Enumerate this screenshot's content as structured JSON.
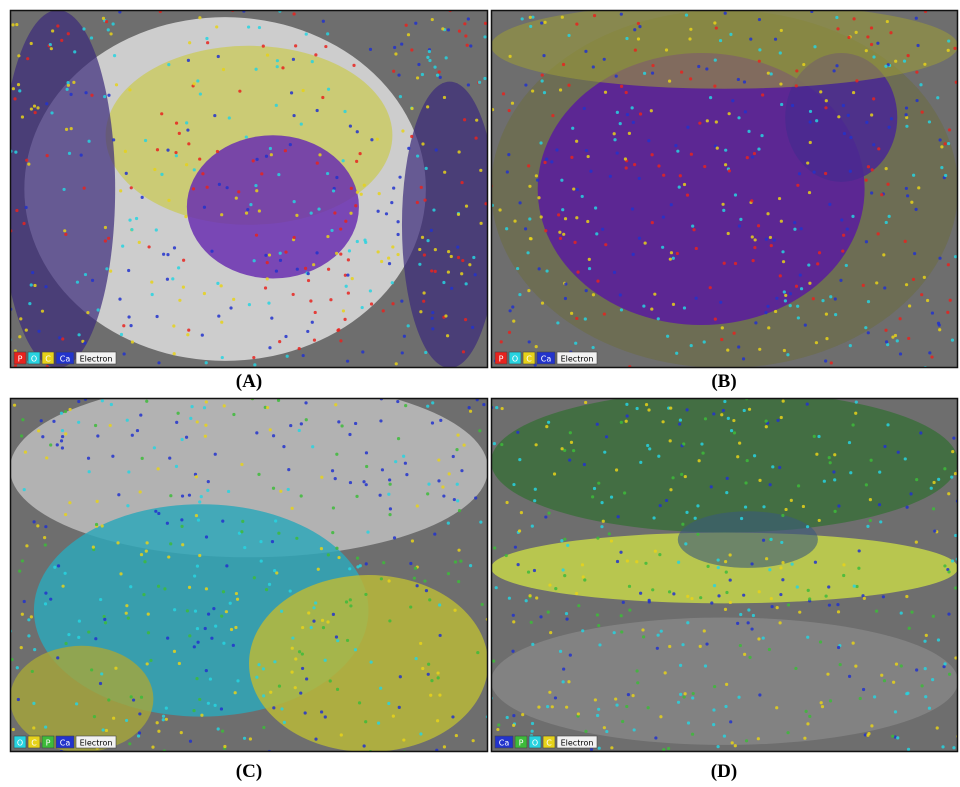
{
  "panels": [
    {
      "caption": "(A)",
      "legend": [
        {
          "label": "P",
          "color": "#e8231e"
        },
        {
          "label": "O",
          "color": "#27d3e0"
        },
        {
          "label": "C",
          "color": "#e6d21a"
        },
        {
          "label": "Ca",
          "color": "#2233cc"
        },
        {
          "label": "Electron",
          "color": "#f2f2f2"
        }
      ]
    },
    {
      "caption": "(B)",
      "legend": [
        {
          "label": "P",
          "color": "#e8231e"
        },
        {
          "label": "O",
          "color": "#27d3e0"
        },
        {
          "label": "C",
          "color": "#e6d21a"
        },
        {
          "label": "Ca",
          "color": "#2233cc"
        },
        {
          "label": "Electron",
          "color": "#f2f2f2"
        }
      ]
    },
    {
      "caption": "(C)",
      "legend": [
        {
          "label": "O",
          "color": "#27d3e0"
        },
        {
          "label": "C",
          "color": "#e6d21a"
        },
        {
          "label": "P",
          "color": "#3dbb3a"
        },
        {
          "label": "Ca",
          "color": "#2233cc"
        },
        {
          "label": "Electron",
          "color": "#f2f2f2"
        }
      ]
    },
    {
      "caption": "(D)",
      "legend": [
        {
          "label": "Ca",
          "color": "#2233cc"
        },
        {
          "label": "P",
          "color": "#3dbb3a"
        },
        {
          "label": "O",
          "color": "#27d3e0"
        },
        {
          "label": "C",
          "color": "#e6d21a"
        },
        {
          "label": "Electron",
          "color": "#f2f2f2"
        }
      ]
    }
  ]
}
